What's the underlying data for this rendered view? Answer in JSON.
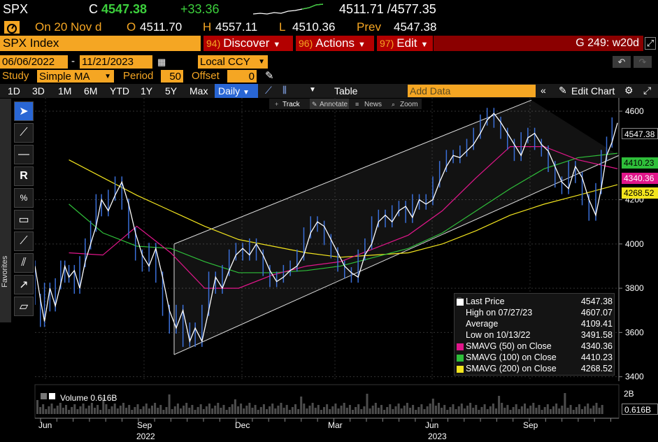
{
  "ticker": {
    "symbol": "SPX",
    "c_label": "C",
    "last": "4547.38",
    "change": "+33.36",
    "range": "4511.71 /4577.35"
  },
  "ohlc": {
    "date": "On 20 Nov d",
    "o_label": "O",
    "o": "4511.70",
    "h_label": "H",
    "h": "4557.11",
    "l_label": "L",
    "l": "4510.36",
    "prev_label": "Prev",
    "prev": "4547.38"
  },
  "menu": {
    "security": "SPX Index",
    "discover_num": "94)",
    "discover": "Discover",
    "actions_num": "96)",
    "actions": "Actions",
    "edit_num": "97)",
    "edit": "Edit",
    "page": "G 249: w20d"
  },
  "range": {
    "start": "06/06/2022",
    "sep": "-",
    "end": "11/21/2023",
    "currency": "Local CCY"
  },
  "study": {
    "label": "Study",
    "value": "Simple MA",
    "period_label": "Period",
    "period": "50",
    "offset_label": "Offset",
    "offset": "0"
  },
  "tabs": [
    "1D",
    "3D",
    "1M",
    "6M",
    "YTD",
    "1Y",
    "5Y",
    "Max"
  ],
  "daily": "Daily",
  "table_label": "Table",
  "add_data_placeholder": "Add Data",
  "edit_chart": "Edit Chart",
  "chart_toolbar": [
    "Track",
    "Annotate",
    "News",
    "Zoom"
  ],
  "favorites_label": "Favorites",
  "volume_label": "Volume 0.616B",
  "price_tags": {
    "last": "4547.38",
    "sma100": "4410.23",
    "sma50": "4340.36",
    "sma200": "4268.52",
    "volume": "0.616B",
    "vol_axis": "2B"
  },
  "legend": [
    {
      "label": "Last Price",
      "value": "4547.38",
      "color": "#ffffff"
    },
    {
      "label": "High on 07/27/23",
      "value": "4607.07",
      "color": ""
    },
    {
      "label": "Average",
      "value": "4109.41",
      "color": ""
    },
    {
      "label": "Low on 10/13/22",
      "value": "3491.58",
      "color": ""
    },
    {
      "label": "SMAVG (50)  on Close",
      "value": "4340.36",
      "color": "#e0168a"
    },
    {
      "label": "SMAVG (100)  on Close",
      "value": "4410.23",
      "color": "#2fbf3a"
    },
    {
      "label": "SMAVG (200)  on Close",
      "value": "4268.52",
      "color": "#f2e41e"
    }
  ],
  "chart_data": {
    "type": "line",
    "y_ticks": [
      3400,
      3600,
      3800,
      4000,
      4200,
      4600
    ],
    "ylim": [
      3380,
      4660
    ],
    "x_month_labels": [
      "Jun",
      "Sep",
      "Dec",
      "Mar",
      "Jun",
      "Sep"
    ],
    "x_year_labels": [
      "2022",
      "2023"
    ],
    "series": [
      {
        "name": "Last Price",
        "color": "#ffffff",
        "points": [
          [
            0,
            3900
          ],
          [
            8,
            3750
          ],
          [
            14,
            3650
          ],
          [
            22,
            3800
          ],
          [
            30,
            3720
          ],
          [
            38,
            3820
          ],
          [
            44,
            3900
          ],
          [
            50,
            3850
          ],
          [
            58,
            3880
          ],
          [
            66,
            3800
          ],
          [
            74,
            3920
          ],
          [
            82,
            4000
          ],
          [
            90,
            4080
          ],
          [
            98,
            4200
          ],
          [
            108,
            4150
          ],
          [
            118,
            4220
          ],
          [
            128,
            4280
          ],
          [
            138,
            4180
          ],
          [
            148,
            4050
          ],
          [
            158,
            3950
          ],
          [
            168,
            3900
          ],
          [
            178,
            3980
          ],
          [
            188,
            3850
          ],
          [
            198,
            3700
          ],
          [
            208,
            3620
          ],
          [
            218,
            3700
          ],
          [
            228,
            3560
          ],
          [
            236,
            3620
          ],
          [
            246,
            3560
          ],
          [
            256,
            3700
          ],
          [
            266,
            3850
          ],
          [
            276,
            3800
          ],
          [
            286,
            3880
          ],
          [
            296,
            3950
          ],
          [
            306,
            3980
          ],
          [
            316,
            3950
          ],
          [
            326,
            4000
          ],
          [
            336,
            3950
          ],
          [
            346,
            3880
          ],
          [
            356,
            3830
          ],
          [
            366,
            3850
          ],
          [
            376,
            3880
          ],
          [
            386,
            3900
          ],
          [
            396,
            3950
          ],
          [
            406,
            4050
          ],
          [
            416,
            4100
          ],
          [
            426,
            4080
          ],
          [
            436,
            4020
          ],
          [
            446,
            3960
          ],
          [
            456,
            3900
          ],
          [
            466,
            3870
          ],
          [
            476,
            3850
          ],
          [
            486,
            3950
          ],
          [
            496,
            4000
          ],
          [
            506,
            4100
          ],
          [
            516,
            4130
          ],
          [
            526,
            4100
          ],
          [
            536,
            4150
          ],
          [
            546,
            4170
          ],
          [
            556,
            4120
          ],
          [
            566,
            4200
          ],
          [
            576,
            4180
          ],
          [
            586,
            4200
          ],
          [
            596,
            4280
          ],
          [
            606,
            4350
          ],
          [
            616,
            4400
          ],
          [
            626,
            4390
          ],
          [
            636,
            4420
          ],
          [
            646,
            4450
          ],
          [
            656,
            4500
          ],
          [
            666,
            4560
          ],
          [
            676,
            4590
          ],
          [
            686,
            4550
          ],
          [
            696,
            4500
          ],
          [
            706,
            4450
          ],
          [
            716,
            4400
          ],
          [
            726,
            4480
          ],
          [
            736,
            4500
          ],
          [
            746,
            4450
          ],
          [
            756,
            4420
          ],
          [
            766,
            4350
          ],
          [
            776,
            4280
          ],
          [
            786,
            4250
          ],
          [
            796,
            4350
          ],
          [
            806,
            4300
          ],
          [
            816,
            4200
          ],
          [
            826,
            4130
          ],
          [
            834,
            4250
          ],
          [
            842,
            4400
          ],
          [
            850,
            4460
          ],
          [
            858,
            4547
          ]
        ]
      },
      {
        "name": "SMAVG (50)",
        "color": "#e0168a",
        "points": [
          [
            50,
            3960
          ],
          [
            100,
            3950
          ],
          [
            150,
            4080
          ],
          [
            200,
            3960
          ],
          [
            250,
            3800
          ],
          [
            300,
            3800
          ],
          [
            350,
            3860
          ],
          [
            400,
            3900
          ],
          [
            450,
            3920
          ],
          [
            500,
            3980
          ],
          [
            550,
            4040
          ],
          [
            600,
            4150
          ],
          [
            650,
            4300
          ],
          [
            700,
            4440
          ],
          [
            750,
            4440
          ],
          [
            800,
            4380
          ],
          [
            858,
            4340
          ]
        ]
      },
      {
        "name": "SMAVG (100)",
        "color": "#2fbf3a",
        "points": [
          [
            50,
            4180
          ],
          [
            100,
            4050
          ],
          [
            150,
            3990
          ],
          [
            200,
            3980
          ],
          [
            250,
            3920
          ],
          [
            300,
            3870
          ],
          [
            350,
            3870
          ],
          [
            400,
            3880
          ],
          [
            450,
            3900
          ],
          [
            500,
            3940
          ],
          [
            550,
            3980
          ],
          [
            600,
            4050
          ],
          [
            650,
            4150
          ],
          [
            700,
            4250
          ],
          [
            750,
            4340
          ],
          [
            800,
            4390
          ],
          [
            858,
            4410
          ]
        ]
      },
      {
        "name": "SMAVG (200)",
        "color": "#f2e41e",
        "points": [
          [
            50,
            4380
          ],
          [
            100,
            4300
          ],
          [
            150,
            4220
          ],
          [
            200,
            4150
          ],
          [
            250,
            4080
          ],
          [
            300,
            4020
          ],
          [
            350,
            3990
          ],
          [
            400,
            3960
          ],
          [
            450,
            3940
          ],
          [
            500,
            3950
          ],
          [
            550,
            3960
          ],
          [
            600,
            4000
          ],
          [
            650,
            4060
          ],
          [
            700,
            4130
          ],
          [
            750,
            4180
          ],
          [
            800,
            4220
          ],
          [
            858,
            4268
          ]
        ]
      }
    ],
    "channel": {
      "upper": [
        [
          249,
          4000
        ],
        [
          760,
          4650
        ]
      ],
      "lower": [
        [
          249,
          3500
        ],
        [
          885,
          4400
        ]
      ]
    }
  }
}
